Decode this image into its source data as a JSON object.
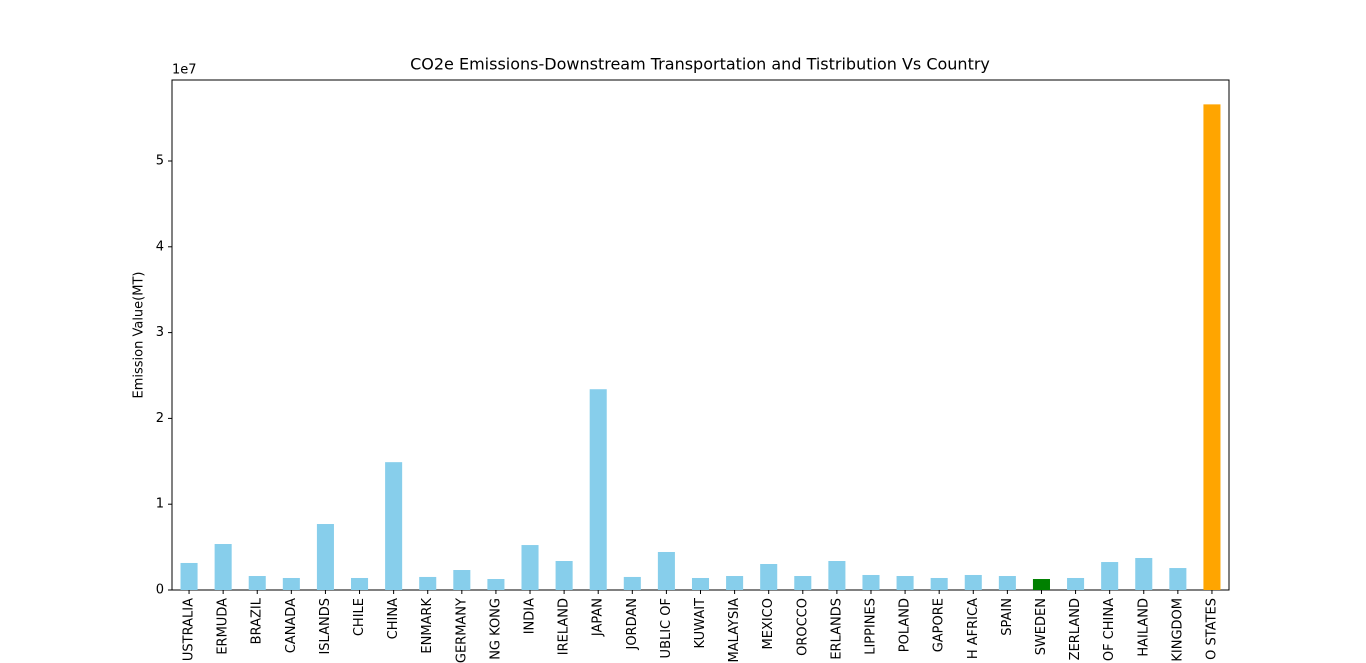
{
  "chart_data": {
    "type": "bar",
    "title": "CO2e Emissions-Downstream Transportation and Tistribution Vs Country",
    "y_label": "Emission Value(MT)",
    "y_offset_label": "1e7",
    "categories": [
      "USTRALIA",
      "ERMUDA",
      "BRAZIL",
      "CANADA",
      "ISLANDS",
      "CHILE",
      "CHINA",
      "ENMARK",
      "GERMANY",
      "NG KONG",
      "INDIA",
      "IRELAND",
      "JAPAN",
      "JORDAN",
      "UBLIC OF",
      "KUWAIT",
      "MALAYSIA",
      "MEXICO",
      "OROCCO",
      "ERLANDS",
      "LIPPINES",
      "POLAND",
      "GAPORE",
      "H AFRICA",
      "SPAIN",
      "SWEDEN",
      "ZERLAND",
      "OF CHINA",
      "HAILAND",
      "KINGDOM",
      "O STATES"
    ],
    "values": [
      3150000,
      5360000,
      1630000,
      1400000,
      7690000,
      1400000,
      14900000,
      1520000,
      2330000,
      1280000,
      5240000,
      3380000,
      23400000,
      1520000,
      4430000,
      1400000,
      1630000,
      3030000,
      1630000,
      3380000,
      1750000,
      1630000,
      1400000,
      1750000,
      1630000,
      1280000,
      1400000,
      3260000,
      3730000,
      2560000,
      56600000
    ],
    "colors": [
      "#87ceeb",
      "#87ceeb",
      "#87ceeb",
      "#87ceeb",
      "#87ceeb",
      "#87ceeb",
      "#87ceeb",
      "#87ceeb",
      "#87ceeb",
      "#87ceeb",
      "#87ceeb",
      "#87ceeb",
      "#87ceeb",
      "#87ceeb",
      "#87ceeb",
      "#87ceeb",
      "#87ceeb",
      "#87ceeb",
      "#87ceeb",
      "#87ceeb",
      "#87ceeb",
      "#87ceeb",
      "#87ceeb",
      "#87ceeb",
      "#87ceeb",
      "#008000",
      "#87ceeb",
      "#87ceeb",
      "#87ceeb",
      "#87ceeb",
      "#ffa500"
    ],
    "ylim": [
      0,
      59440000
    ],
    "yticks": [
      {
        "value": 0,
        "label": "0"
      },
      {
        "value": 10000000,
        "label": "1"
      },
      {
        "value": 20000000,
        "label": "2"
      },
      {
        "value": 30000000,
        "label": "3"
      },
      {
        "value": 40000000,
        "label": "4"
      },
      {
        "value": 50000000,
        "label": "5"
      }
    ],
    "grid": false
  }
}
